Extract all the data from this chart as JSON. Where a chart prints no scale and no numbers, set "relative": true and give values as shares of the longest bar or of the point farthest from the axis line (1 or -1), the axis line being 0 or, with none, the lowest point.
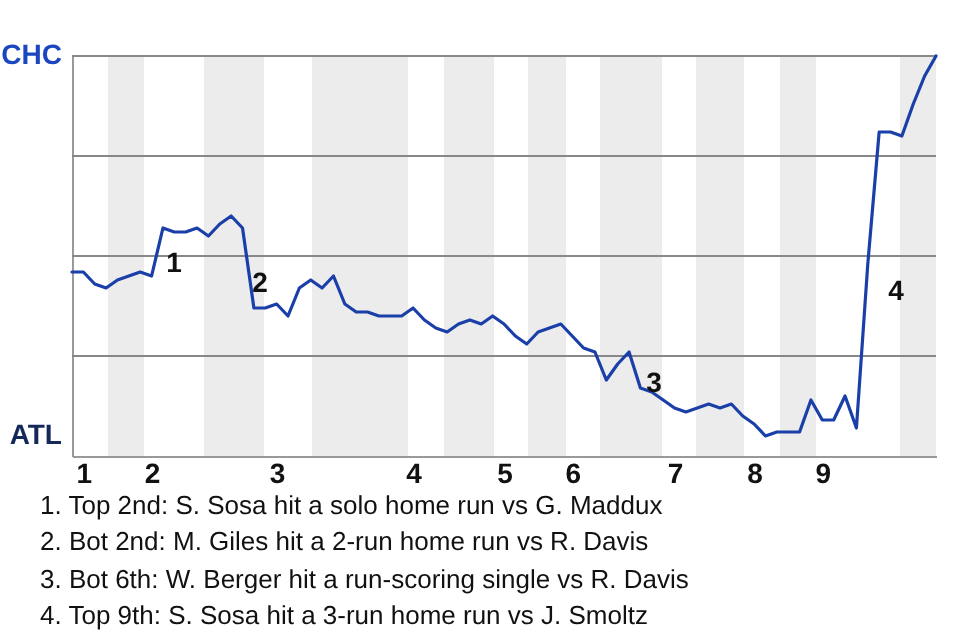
{
  "chart_data": {
    "type": "line",
    "relative": true,
    "categories": [
      null,
      "1",
      null,
      null,
      null,
      null,
      null,
      "2",
      null,
      null,
      null,
      null,
      null,
      null,
      null,
      null,
      null,
      null,
      "3",
      null,
      null,
      null,
      null,
      null,
      null,
      null,
      null,
      null,
      null,
      null,
      "4",
      null,
      null,
      null,
      null,
      null,
      null,
      null,
      "5",
      null,
      null,
      null,
      null,
      null,
      "6",
      null,
      null,
      null,
      null,
      null,
      null,
      null,
      null,
      "7",
      null,
      null,
      null,
      null,
      null,
      null,
      "8",
      null,
      null,
      null,
      null,
      null,
      "9",
      null,
      null,
      null,
      null,
      null,
      null,
      null,
      null,
      null,
      null
    ],
    "series": [
      {
        "color": "#1a3fa8",
        "values": [
          0.46,
          0.46,
          0.43,
          0.42,
          0.44,
          0.45,
          0.46,
          0.45,
          0.57,
          0.56,
          0.56,
          0.57,
          0.55,
          0.58,
          0.6,
          0.57,
          0.37,
          0.37,
          0.38,
          0.35,
          0.42,
          0.44,
          0.42,
          0.45,
          0.38,
          0.36,
          0.36,
          0.35,
          0.35,
          0.35,
          0.37,
          0.34,
          0.32,
          0.31,
          0.33,
          0.34,
          0.33,
          0.35,
          0.33,
          0.3,
          0.28,
          0.31,
          0.32,
          0.33,
          0.3,
          0.27,
          0.26,
          0.19,
          0.23,
          0.26,
          0.17,
          0.16,
          0.14,
          0.12,
          0.11,
          0.12,
          0.13,
          0.12,
          0.13,
          0.1,
          0.08,
          0.05,
          0.06,
          0.06,
          0.06,
          0.14,
          0.09,
          0.09,
          0.15,
          0.07,
          0.48,
          0.81,
          0.81,
          0.8,
          0.88,
          0.95,
          1
        ]
      }
    ],
    "grid": "y",
    "annotations": [
      "CHC",
      "ATL",
      "1",
      "2",
      "3",
      "4",
      "1. Top 2nd: S. Sosa hit a solo home run vs G. Maddux",
      "2. Bot 2nd: M. Giles hit a 2-run home run vs R. Davis",
      "3. Bot 6th: W. Berger hit a run-scoring single vs R. Davis",
      "4. Top 9th: S. Sosa hit a 3-run home run vs J. Smoltz"
    ]
  }
}
